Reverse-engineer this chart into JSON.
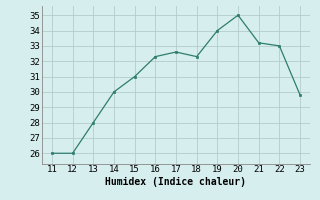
{
  "x": [
    11,
    12,
    13,
    14,
    15,
    16,
    17,
    18,
    19,
    20,
    21,
    22,
    23
  ],
  "y": [
    26,
    26,
    28,
    30,
    31,
    32.3,
    32.6,
    32.3,
    34,
    35,
    33.2,
    33,
    29.8
  ],
  "xlim": [
    10.5,
    23.5
  ],
  "ylim": [
    25.3,
    35.6
  ],
  "xticks": [
    11,
    12,
    13,
    14,
    15,
    16,
    17,
    18,
    19,
    20,
    21,
    22,
    23
  ],
  "yticks": [
    26,
    27,
    28,
    29,
    30,
    31,
    32,
    33,
    34,
    35
  ],
  "xlabel": "Humidex (Indice chaleur)",
  "line_color": "#2e7d6e",
  "marker_color": "#2e7d6e",
  "bg_color": "#d6eeee",
  "grid_color": "#b5cccc",
  "label_fontsize": 7,
  "tick_fontsize": 6.5
}
